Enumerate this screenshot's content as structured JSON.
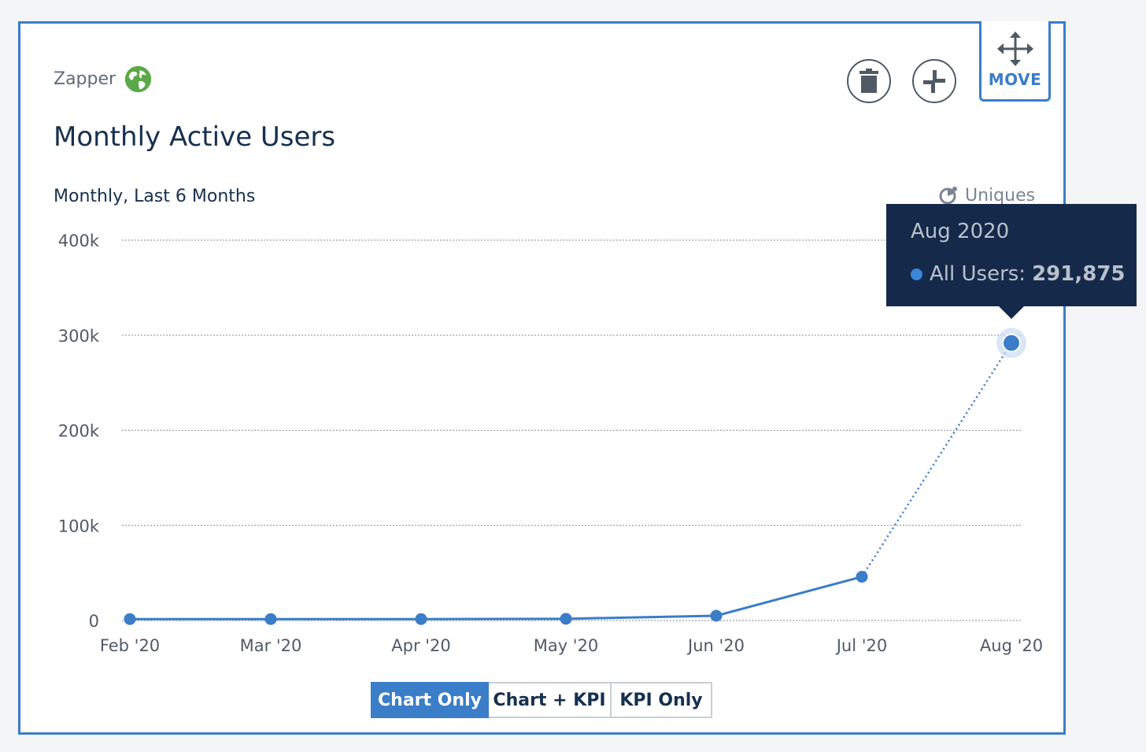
{
  "project": {
    "name": "Zapper",
    "icon": "globe-icon"
  },
  "chart_header": {
    "title": "Monthly Active Users",
    "subtitle": "Monthly, Last 6 Months",
    "metric_label": "Uniques",
    "metric_icon": "uniques-icon"
  },
  "toolbar": {
    "delete_icon": "trash-icon",
    "resize_icon": "resize-icon",
    "move_icon": "move-arrows-icon",
    "move_label": "MOVE"
  },
  "tooltip": {
    "title": "Aug 2020",
    "series_label": "All Users:",
    "value": "291,875"
  },
  "view_toggle": {
    "options": [
      "Chart Only",
      "Chart + KPI",
      "KPI Only"
    ],
    "selected": "Chart Only"
  },
  "colors": {
    "accent": "#3a7dc9",
    "line": "#3a7dc9",
    "tooltip_bg": "#15294a",
    "globe": "#5aa848"
  },
  "chart_data": {
    "type": "line",
    "x": [
      "Feb '20",
      "Mar '20",
      "Apr '20",
      "May '20",
      "Jun '20",
      "Jul '20",
      "Aug '20"
    ],
    "series": [
      {
        "name": "All Users",
        "values": [
          1500,
          1500,
          1500,
          1800,
          5000,
          46000,
          291875
        ]
      }
    ],
    "yticks": [
      "0",
      "100k",
      "200k",
      "300k",
      "400k"
    ],
    "ylim": [
      0,
      400000
    ],
    "grid": true,
    "last_segment_dotted": true,
    "highlighted_point": "Aug '20"
  }
}
